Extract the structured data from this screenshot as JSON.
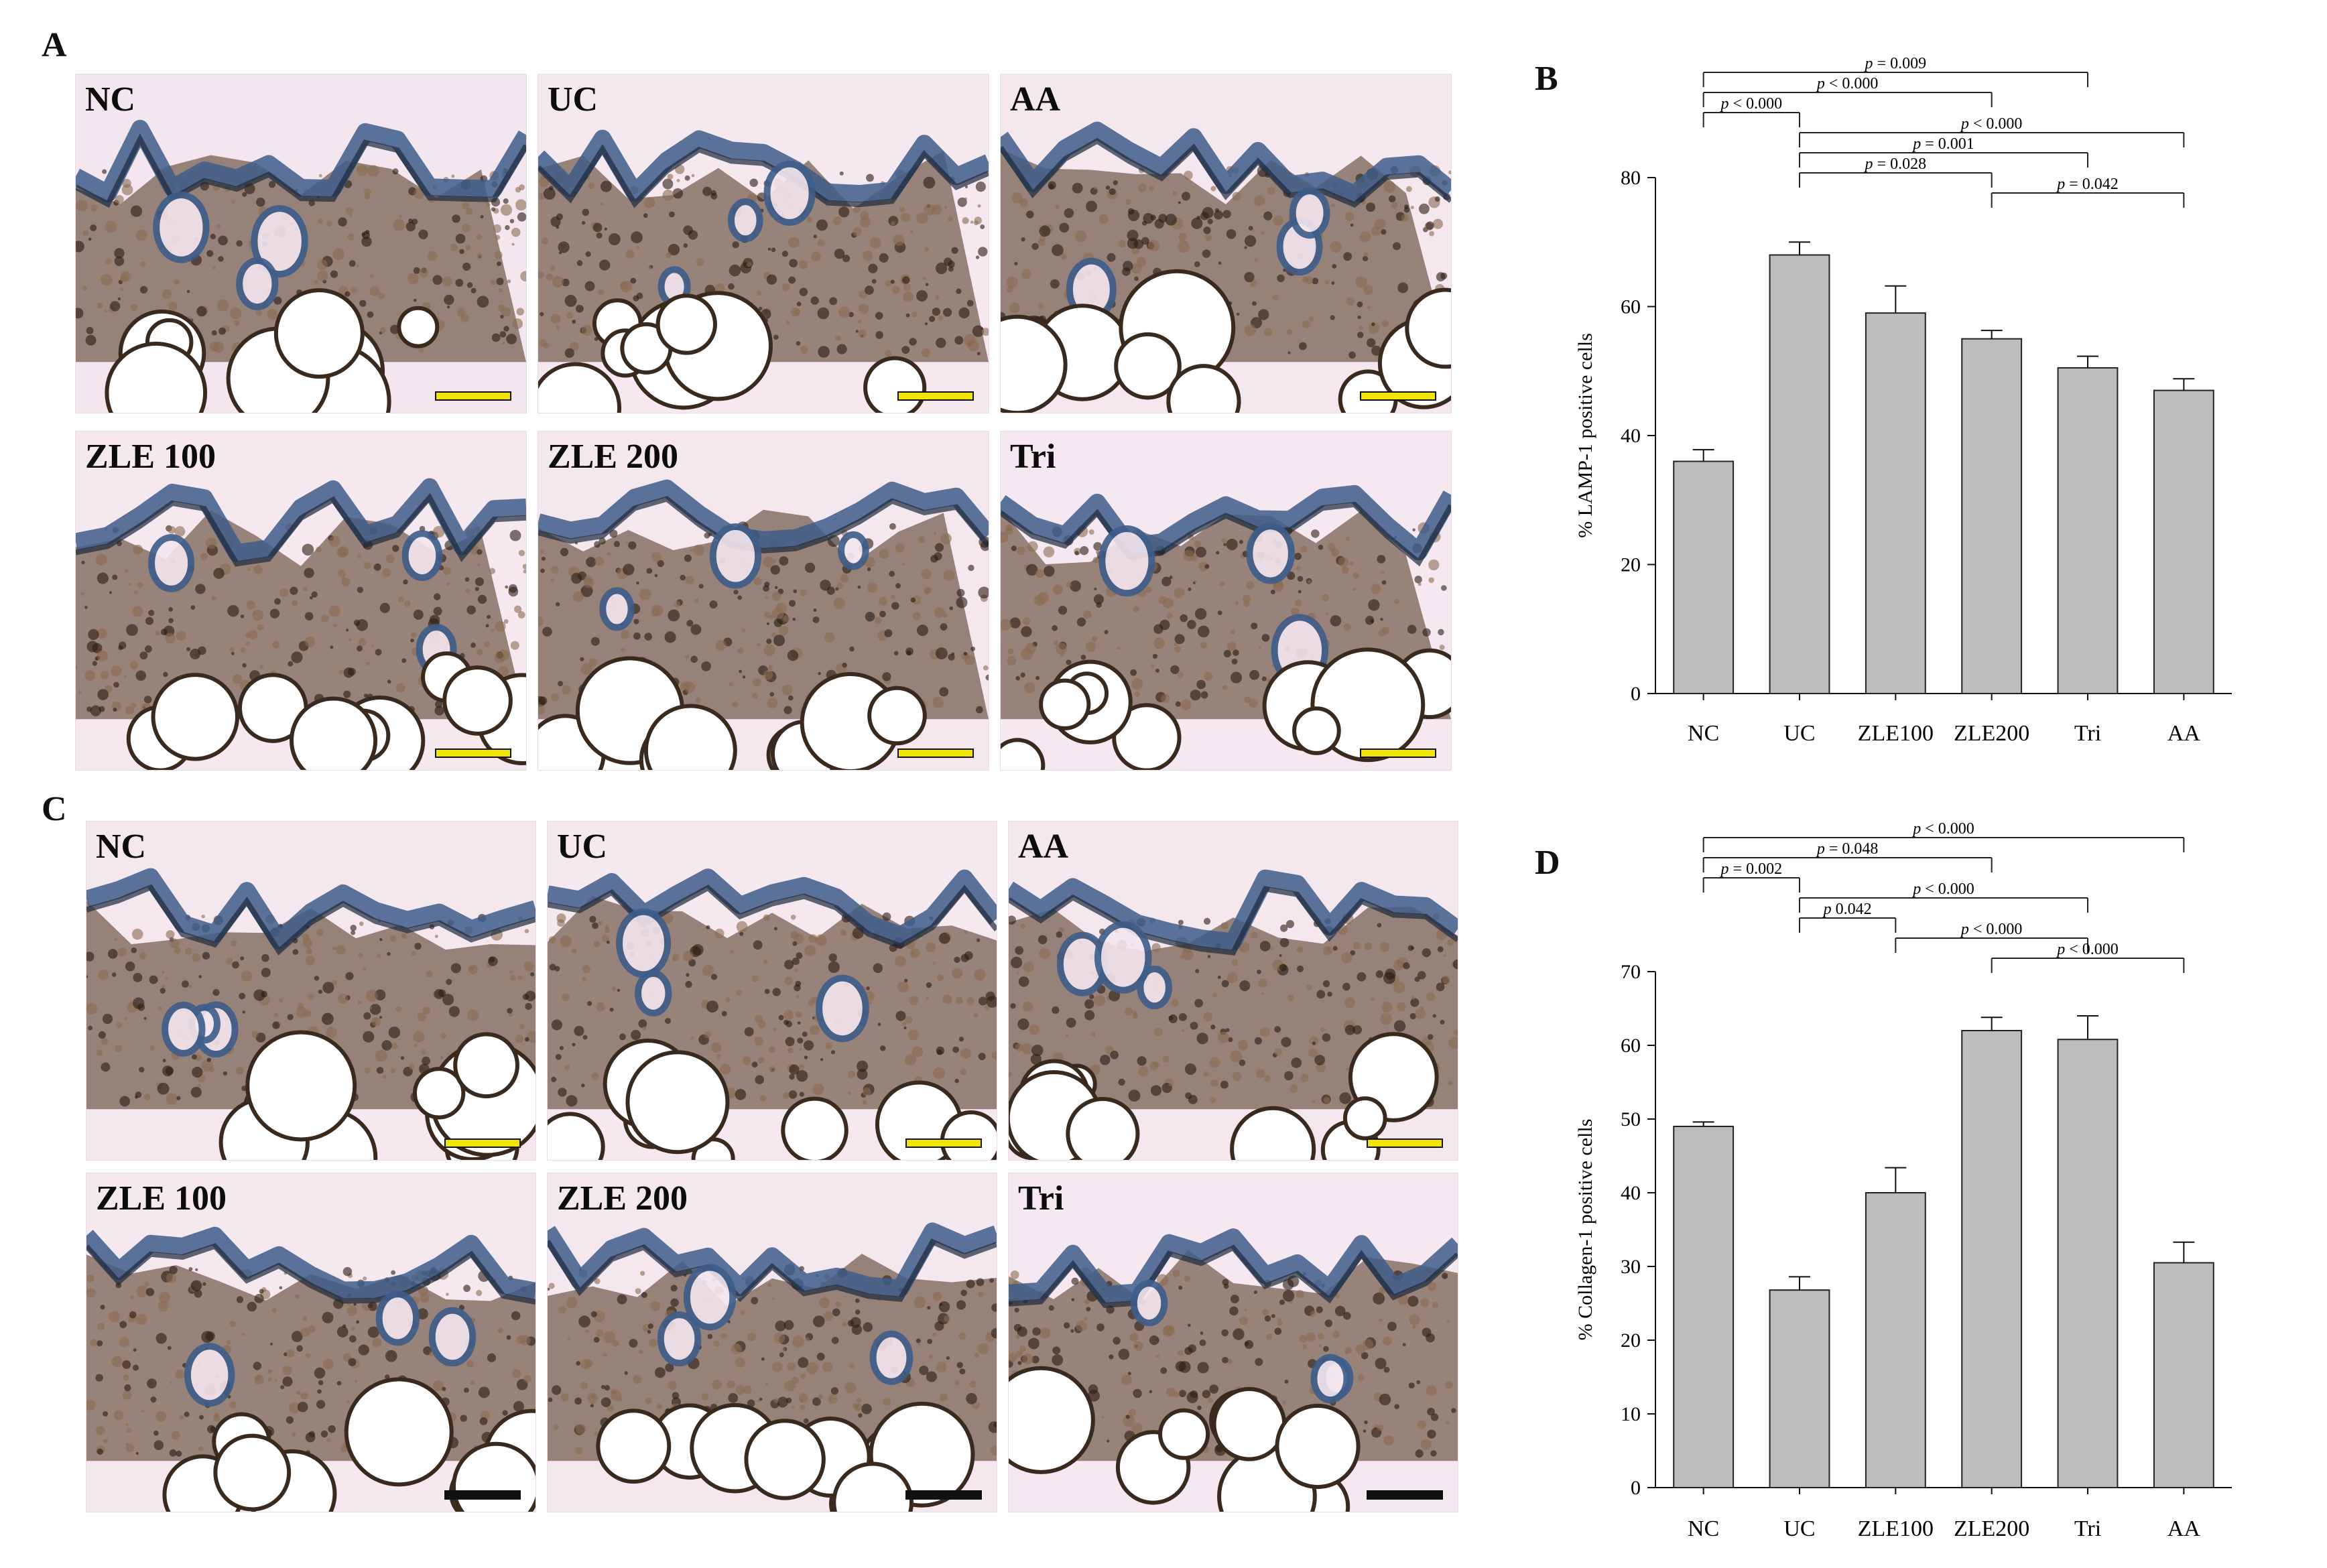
{
  "panels": {
    "A": "A",
    "B": "B",
    "C": "C",
    "D": "D"
  },
  "micrographs_A": [
    {
      "label": "NC",
      "bg": "#f3e6ee"
    },
    {
      "label": "UC",
      "bg": "#f6e8ef"
    },
    {
      "label": "AA",
      "bg": "#f4e7ee"
    },
    {
      "label": "ZLE 100",
      "bg": "#f5e8ef"
    },
    {
      "label": "ZLE 200",
      "bg": "#f4e7ee"
    },
    {
      "label": "Tri",
      "bg": "#f5e8f0"
    }
  ],
  "micrographs_C": [
    {
      "label": "NC",
      "bg": "#f4e7ee"
    },
    {
      "label": "UC",
      "bg": "#f5e8ef"
    },
    {
      "label": "AA",
      "bg": "#f4e7ee"
    },
    {
      "label": "ZLE 100",
      "bg": "#f5e8ef"
    },
    {
      "label": "ZLE 200",
      "bg": "#f4e7ee"
    },
    {
      "label": "Tri",
      "bg": "#f5e8f0"
    }
  ],
  "colors": {
    "bar_fill": "#bdbdbd",
    "bar_stroke": "#222222",
    "stain_brown": "#4a2f1c",
    "stain_blue": "#3e5d8a",
    "scalebar_A": "#f2e600",
    "scalebar_C_top": "#f2e600",
    "scalebar_C_bottom": "#111111"
  },
  "chart_data": [
    {
      "panel": "B",
      "type": "bar",
      "categories": [
        "NC",
        "UC",
        "ZLE100",
        "ZLE200",
        "Tri",
        "AA"
      ],
      "values": [
        36,
        68,
        59,
        55,
        50.5,
        47
      ],
      "errors": [
        1.8,
        2.0,
        4.2,
        1.3,
        1.8,
        1.8
      ],
      "ylabel": "% LAMP-1 positive cells",
      "ylim": [
        0,
        80
      ],
      "yticks": [
        0,
        20,
        40,
        60,
        80
      ],
      "annotations": [
        {
          "text": "p = 0.009",
          "from": "NC",
          "to": "Tri"
        },
        {
          "text": "p < 0.000",
          "from": "NC",
          "to": "ZLE200"
        },
        {
          "text": "p < 0.000",
          "from": "NC",
          "to": "UC"
        },
        {
          "text": "p < 0.000",
          "from": "UC",
          "to": "AA"
        },
        {
          "text": "p = 0.001",
          "from": "UC",
          "to": "Tri"
        },
        {
          "text": "p = 0.028",
          "from": "UC",
          "to": "ZLE200"
        },
        {
          "text": "p = 0.042",
          "from": "ZLE200",
          "to": "AA"
        }
      ]
    },
    {
      "panel": "D",
      "type": "bar",
      "categories": [
        "NC",
        "UC",
        "ZLE100",
        "ZLE200",
        "Tri",
        "AA"
      ],
      "values": [
        49,
        26.8,
        40,
        62,
        60.8,
        30.5
      ],
      "errors": [
        0.6,
        1.8,
        3.4,
        1.8,
        3.2,
        2.8
      ],
      "ylabel": "% Collagen-1 positive cells",
      "ylim": [
        0,
        70
      ],
      "yticks": [
        0,
        10,
        20,
        30,
        40,
        50,
        60,
        70
      ],
      "annotations": [
        {
          "text": "p < 0.000",
          "from": "NC",
          "to": "AA"
        },
        {
          "text": "p = 0.048",
          "from": "NC",
          "to": "ZLE200"
        },
        {
          "text": "p = 0.002",
          "from": "NC",
          "to": "UC"
        },
        {
          "text": "p < 0.000",
          "from": "UC",
          "to": "Tri"
        },
        {
          "text": "p   0.042",
          "from": "UC",
          "to": "ZLE100"
        },
        {
          "text": "p < 0.000",
          "from": "ZLE100",
          "to": "Tri"
        },
        {
          "text": "p < 0.000",
          "from": "ZLE200",
          "to": "AA"
        }
      ]
    }
  ]
}
